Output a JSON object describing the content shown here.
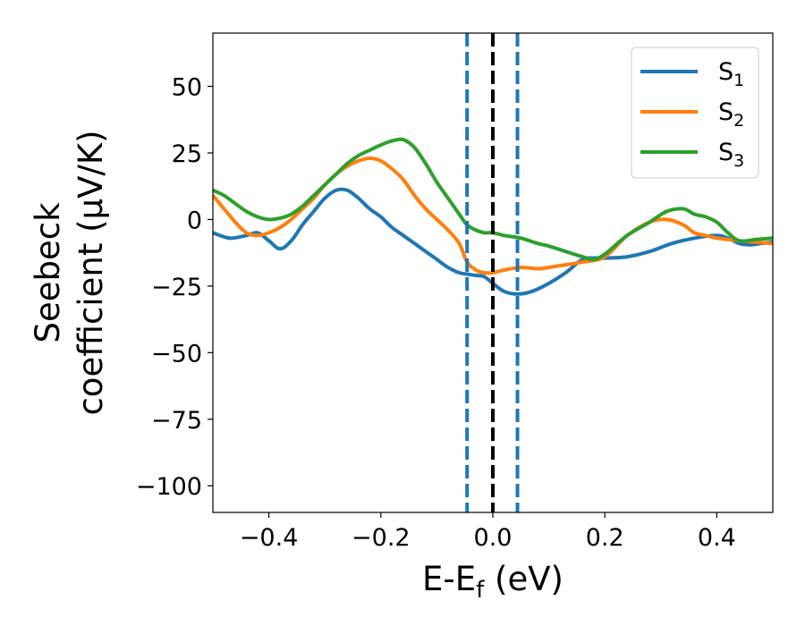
{
  "chart_data": {
    "type": "line",
    "xlabel": {
      "main": "E-E",
      "sub": "f",
      "rest": " (eV)"
    },
    "ylabel": {
      "line1": "Seebeck",
      "line2": "coefficient  (μV/K)"
    },
    "xlim": [
      -0.5,
      0.5
    ],
    "ylim": [
      -110,
      70
    ],
    "xticks": [
      -0.4,
      -0.2,
      0.0,
      0.2,
      0.4
    ],
    "xtick_labels": [
      "−0.4",
      "−0.2",
      "0.0",
      "0.2",
      "0.4"
    ],
    "yticks": [
      50,
      25,
      0,
      -25,
      -50,
      -75,
      -100
    ],
    "ytick_labels": [
      "50",
      "25",
      "0",
      "−25",
      "−50",
      "−75",
      "−100"
    ],
    "grid": false,
    "legend_position": "top-right",
    "vlines": [
      {
        "x": -0.046,
        "style": "dashed",
        "color": "#1f77b4"
      },
      {
        "x": 0.0,
        "style": "dashed",
        "color": "#000000"
      },
      {
        "x": 0.044,
        "style": "dashed",
        "color": "#1f77b4"
      }
    ],
    "series": [
      {
        "name": "S",
        "sub": "1",
        "color": "#1f77b4",
        "x": [
          -0.5,
          -0.47,
          -0.44,
          -0.42,
          -0.4,
          -0.38,
          -0.36,
          -0.34,
          -0.32,
          -0.3,
          -0.28,
          -0.26,
          -0.24,
          -0.22,
          -0.2,
          -0.18,
          -0.16,
          -0.14,
          -0.12,
          -0.1,
          -0.08,
          -0.06,
          -0.046,
          -0.03,
          -0.015,
          0.0,
          0.02,
          0.044,
          0.07,
          0.1,
          0.13,
          0.16,
          0.18,
          0.2,
          0.24,
          0.28,
          0.32,
          0.36,
          0.4,
          0.42,
          0.44,
          0.46,
          0.48,
          0.5
        ],
        "y": [
          -5,
          -7,
          -6,
          -5,
          -8,
          -11,
          -8,
          -2,
          3,
          8,
          11,
          11,
          8,
          4,
          1,
          -3,
          -6,
          -9,
          -12,
          -15,
          -18,
          -20,
          -20.5,
          -21,
          -21.5,
          -24,
          -27,
          -28,
          -27,
          -24,
          -20,
          -15,
          -14.5,
          -14.5,
          -14,
          -12,
          -9,
          -7,
          -6,
          -7,
          -9,
          -9.5,
          -9,
          -8.5
        ]
      },
      {
        "name": "S",
        "sub": "2",
        "color": "#ff7f0e",
        "x": [
          -0.5,
          -0.48,
          -0.46,
          -0.44,
          -0.42,
          -0.4,
          -0.38,
          -0.36,
          -0.34,
          -0.32,
          -0.3,
          -0.28,
          -0.26,
          -0.24,
          -0.22,
          -0.2,
          -0.18,
          -0.16,
          -0.14,
          -0.12,
          -0.1,
          -0.08,
          -0.06,
          -0.046,
          -0.03,
          -0.015,
          0.0,
          0.02,
          0.05,
          0.08,
          0.1,
          0.13,
          0.16,
          0.2,
          0.24,
          0.28,
          0.31,
          0.34,
          0.36,
          0.38,
          0.4,
          0.42,
          0.44,
          0.47,
          0.5
        ],
        "y": [
          9,
          4,
          -1,
          -5,
          -6,
          -5,
          -3,
          0,
          4,
          8,
          13,
          17,
          20,
          22,
          23,
          22,
          19,
          15,
          9,
          4,
          0,
          -4,
          -9,
          -16,
          -19,
          -20,
          -20,
          -19,
          -18,
          -18.5,
          -18,
          -17,
          -16,
          -14,
          -6,
          -1,
          0,
          -2,
          -5,
          -6,
          -7,
          -7.5,
          -8,
          -8.5,
          -9
        ]
      },
      {
        "name": "S",
        "sub": "3",
        "color": "#2ca02c",
        "x": [
          -0.5,
          -0.48,
          -0.46,
          -0.44,
          -0.42,
          -0.4,
          -0.38,
          -0.36,
          -0.34,
          -0.32,
          -0.3,
          -0.28,
          -0.26,
          -0.24,
          -0.22,
          -0.2,
          -0.18,
          -0.16,
          -0.14,
          -0.12,
          -0.1,
          -0.08,
          -0.06,
          -0.046,
          -0.03,
          -0.015,
          0.0,
          0.02,
          0.05,
          0.08,
          0.1,
          0.13,
          0.16,
          0.18,
          0.2,
          0.24,
          0.28,
          0.31,
          0.34,
          0.36,
          0.38,
          0.4,
          0.42,
          0.44,
          0.47,
          0.5
        ],
        "y": [
          11,
          9,
          6,
          3,
          1,
          0,
          0.5,
          2,
          5,
          9,
          13,
          17,
          21,
          24,
          26,
          28,
          29.5,
          30,
          27,
          21,
          14,
          8,
          2,
          -2,
          -4,
          -5,
          -5,
          -6,
          -7,
          -9,
          -10,
          -12,
          -14,
          -15,
          -13,
          -6,
          -1,
          3,
          4,
          2,
          1,
          -1,
          -5,
          -8,
          -7.5,
          -7
        ]
      }
    ]
  }
}
